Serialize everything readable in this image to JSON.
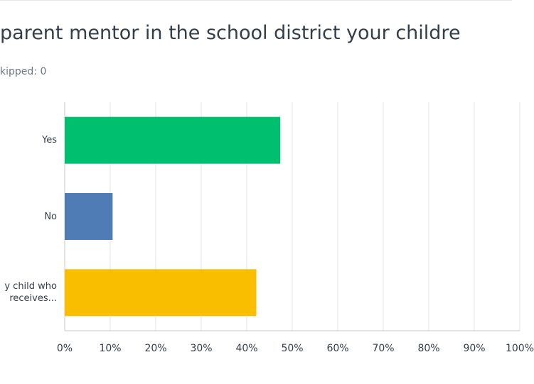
{
  "chart_data": {
    "type": "bar",
    "orientation": "horizontal",
    "title": "parent mentor in the school district your childre",
    "subtitle": "kipped: 0",
    "categories": [
      "Yes",
      "No",
      "y child who receives..."
    ],
    "values": [
      47.37,
      10.53,
      42.11
    ],
    "colors": [
      "#00bf6f",
      "#507cb6",
      "#f9be00"
    ],
    "xlim": [
      0,
      100
    ],
    "xticks": [
      {
        "value": 0,
        "label": "0%"
      },
      {
        "value": 10,
        "label": "10%"
      },
      {
        "value": 20,
        "label": "20%"
      },
      {
        "value": 30,
        "label": "30%"
      },
      {
        "value": 40,
        "label": "40%"
      },
      {
        "value": 50,
        "label": "50%"
      },
      {
        "value": 60,
        "label": "60%"
      },
      {
        "value": 70,
        "label": "70%"
      },
      {
        "value": 80,
        "label": "80%"
      },
      {
        "value": 90,
        "label": "90%"
      },
      {
        "value": 100,
        "label": "100%"
      }
    ],
    "grid": true
  }
}
